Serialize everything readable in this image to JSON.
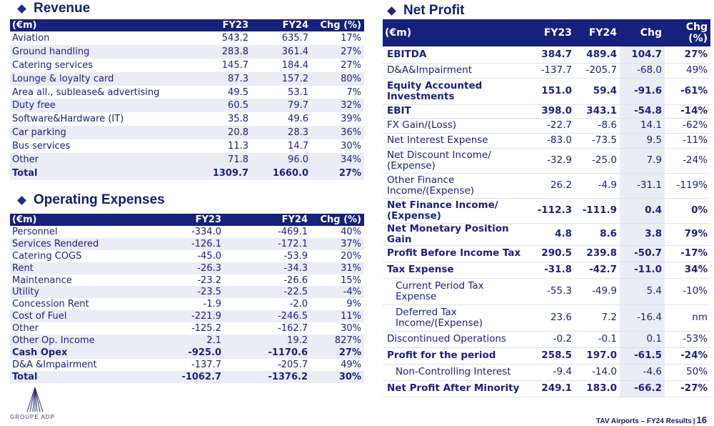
{
  "revenue": {
    "title": "Revenue",
    "headers": [
      "(€m)",
      "FY23",
      "FY24",
      "Chg (%)"
    ],
    "rows": [
      [
        "Aviation",
        "543.2",
        "635.7",
        "17%"
      ],
      [
        "Ground handling",
        "283.8",
        "361.4",
        "27%"
      ],
      [
        "Catering services",
        "145.7",
        "184.4",
        "27%"
      ],
      [
        "Lounge & loyalty card",
        "87.3",
        "157.2",
        "80%"
      ],
      [
        "Area all., sublease& advertising",
        "49.5",
        "53.1",
        "7%"
      ],
      [
        "Duty free",
        "60.5",
        "79.7",
        "32%"
      ],
      [
        "Software&Hardware (IT)",
        "35.8",
        "49.6",
        "39%"
      ],
      [
        "Car parking",
        "20.8",
        "28.3",
        "36%"
      ],
      [
        "Bus services",
        "11.3",
        "14.7",
        "30%"
      ],
      [
        "Other",
        "71.8",
        "96.0",
        "34%"
      ]
    ],
    "total": [
      "Total",
      "1309.7",
      "1660.0",
      "27%"
    ]
  },
  "opex": {
    "title": "Operating Expenses",
    "headers": [
      "(€m)",
      "FY23",
      "FY24",
      "Chg (%)"
    ],
    "rows": [
      [
        "Personnel",
        "-334.0",
        "-469.1",
        "40%"
      ],
      [
        "Services Rendered",
        "-126.1",
        "-172.1",
        "37%"
      ],
      [
        "Catering COGS",
        "-45.0",
        "-53.9",
        "20%"
      ],
      [
        "Rent",
        "-26.3",
        "-34.3",
        "31%"
      ],
      [
        "Maintenance",
        "-23.2",
        "-26.6",
        "15%"
      ],
      [
        "Utility",
        "-23.5",
        "-22.5",
        "-4%"
      ],
      [
        "Concession Rent",
        "-1.9",
        "-2.0",
        "9%"
      ],
      [
        "Cost of Fuel",
        "-221.9",
        "-246.5",
        "11%"
      ],
      [
        "Other",
        "-125.2",
        "-162.7",
        "30%"
      ],
      [
        "Other Op. Income",
        "2.1",
        "19.2",
        "827%"
      ]
    ],
    "cash_opex": [
      "Cash Opex",
      "-925.0",
      "-1170.6",
      "27%"
    ],
    "da": [
      "D&A &Impairment",
      "-137.7",
      "-205.7",
      "49%"
    ],
    "total": [
      "Total",
      "-1062.7",
      "-1376.2",
      "30%"
    ]
  },
  "net_profit": {
    "title": "Net Profit",
    "headers": [
      "(€m)",
      "FY23",
      "FY24",
      "Chg",
      "Chg (%)"
    ],
    "rows": [
      {
        "label": "EBITDA",
        "v": [
          "384.7",
          "489.4",
          "104.7",
          "27%"
        ],
        "bold": true,
        "indent": false
      },
      {
        "label": "D&A&Impairment",
        "v": [
          "-137.7",
          "-205.7",
          "-68.0",
          "49%"
        ],
        "bold": false,
        "indent": false
      },
      {
        "label": "Equity Accounted Investments",
        "v": [
          "151.0",
          "59.4",
          "-91.6",
          "-61%"
        ],
        "bold": true,
        "indent": false
      },
      {
        "label": "EBIT",
        "v": [
          "398.0",
          "343.1",
          "-54.8",
          "-14%"
        ],
        "bold": true,
        "indent": false
      },
      {
        "label": "FX Gain/(Loss)",
        "v": [
          "-22.7",
          "-8.6",
          "14.1",
          "-62%"
        ],
        "bold": false,
        "indent": false
      },
      {
        "label": "Net Interest Expense",
        "v": [
          "-83.0",
          "-73.5",
          "9.5",
          "-11%"
        ],
        "bold": false,
        "indent": false
      },
      {
        "label": "Net Discount Income/ (Expense)",
        "v": [
          "-32.9",
          "-25.0",
          "7.9",
          "-24%"
        ],
        "bold": false,
        "indent": false
      },
      {
        "label": "Other Finance Income/(Expense)",
        "v": [
          "26.2",
          "-4.9",
          "-31.1",
          "-119%"
        ],
        "bold": false,
        "indent": false
      },
      {
        "label": "Net Finance Income/ (Expense)",
        "v": [
          "-112.3",
          "-111.9",
          "0.4",
          "0%"
        ],
        "bold": true,
        "indent": false
      },
      {
        "label": "Net Monetary Position Gain",
        "v": [
          "4.8",
          "8.6",
          "3.8",
          "79%"
        ],
        "bold": true,
        "indent": false
      },
      {
        "label": "Profit Before Income Tax",
        "v": [
          "290.5",
          "239.8",
          "-50.7",
          "-17%"
        ],
        "bold": true,
        "indent": false
      },
      {
        "label": "Tax Expense",
        "v": [
          "-31.8",
          "-42.7",
          "-11.0",
          "34%"
        ],
        "bold": true,
        "indent": false
      },
      {
        "label": "Current Period Tax Expense",
        "v": [
          "-55.3",
          "-49.9",
          "5.4",
          "-10%"
        ],
        "bold": false,
        "indent": true
      },
      {
        "label": "Deferred Tax Income/(Expense)",
        "v": [
          "23.6",
          "7.2",
          "-16.4",
          "nm"
        ],
        "bold": false,
        "indent": true
      },
      {
        "label": "Discontinued Operations",
        "v": [
          "-0.2",
          "-0.1",
          "0.1",
          "-53%"
        ],
        "bold": false,
        "indent": false
      },
      {
        "label": "Profit for the period",
        "v": [
          "258.5",
          "197.0",
          "-61.5",
          "-24%"
        ],
        "bold": true,
        "indent": false
      },
      {
        "label": "Non-Controlling Interest",
        "v": [
          "-9.4",
          "-14.0",
          "-4.6",
          "50%"
        ],
        "bold": false,
        "indent": true
      },
      {
        "label": "Net Profit After Minority",
        "v": [
          "249.1",
          "183.0",
          "-66.2",
          "-27%"
        ],
        "bold": true,
        "indent": false
      }
    ]
  },
  "logo": {
    "text": "GROUPE ADP",
    "icon": "adp-logo-icon"
  },
  "footer": {
    "text": "TAV Airports – FY24  Results",
    "page": "16"
  },
  "colors": {
    "header_bg": "#15217a",
    "text": "#1a237e",
    "shade": "#eaecf6"
  }
}
